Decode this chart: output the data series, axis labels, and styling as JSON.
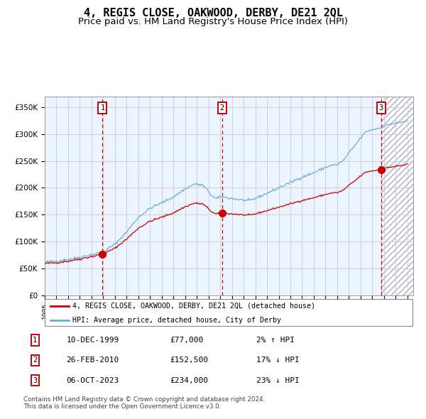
{
  "title": "4, REGIS CLOSE, OAKWOOD, DERBY, DE21 2QL",
  "subtitle": "Price paid vs. HM Land Registry's House Price Index (HPI)",
  "xlim_start": 1995.0,
  "xlim_end": 2026.5,
  "ylim": [
    0,
    370000
  ],
  "yticks": [
    0,
    50000,
    100000,
    150000,
    200000,
    250000,
    300000,
    350000
  ],
  "ytick_labels": [
    "£0",
    "£50K",
    "£100K",
    "£150K",
    "£200K",
    "£250K",
    "£300K",
    "£350K"
  ],
  "sale_dates": [
    1999.94,
    2010.15,
    2023.76
  ],
  "sale_prices": [
    77000,
    152500,
    234000
  ],
  "sale_labels": [
    "1",
    "2",
    "3"
  ],
  "legend_line1": "4, REGIS CLOSE, OAKWOOD, DERBY, DE21 2QL (detached house)",
  "legend_line2": "HPI: Average price, detached house, City of Derby",
  "table_data": [
    [
      "1",
      "10-DEC-1999",
      "£77,000",
      "2% ↑ HPI"
    ],
    [
      "2",
      "26-FEB-2010",
      "£152,500",
      "17% ↓ HPI"
    ],
    [
      "3",
      "06-OCT-2023",
      "£234,000",
      "23% ↓ HPI"
    ]
  ],
  "footer": "Contains HM Land Registry data © Crown copyright and database right 2024.\nThis data is licensed under the Open Government Licence v3.0.",
  "hpi_color": "#6baed6",
  "price_color": "#cc0000",
  "bg_shaded_color": "#ddeeff",
  "title_fontsize": 11,
  "subtitle_fontsize": 9.5
}
